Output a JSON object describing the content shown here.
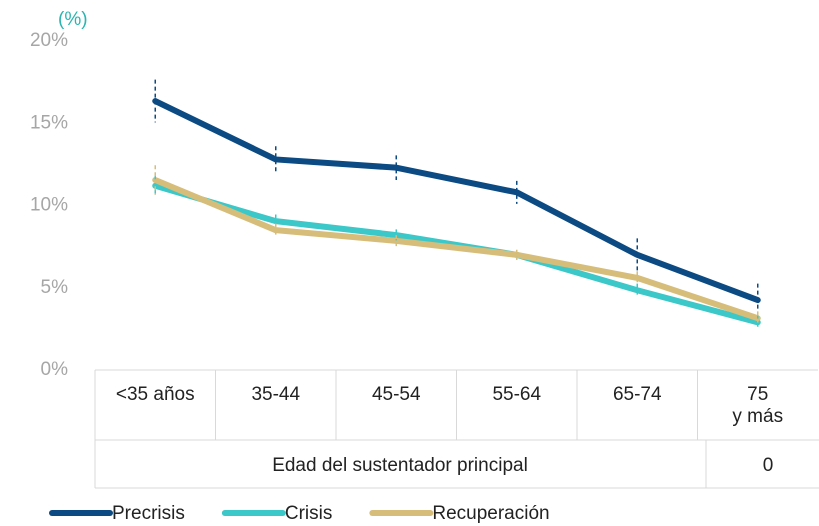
{
  "chart_data": {
    "type": "line",
    "unit_label": "(%)",
    "categories": [
      "<35 años",
      "35-44",
      "45-54",
      "55-64",
      "65-74",
      "75\ny más"
    ],
    "xlabel": "Edad del sustentador principal",
    "xlabel_note": "0",
    "series": [
      {
        "name": "Precrisis",
        "color": "#0b4a82",
        "values": [
          16.35,
          12.8,
          12.3,
          10.8,
          7.0,
          4.25
        ],
        "errors": [
          1.3,
          0.8,
          0.75,
          0.7,
          1.0,
          1.0
        ]
      },
      {
        "name": "Crisis",
        "color": "#3cc8c8",
        "values": [
          11.2,
          9.05,
          8.2,
          7.0,
          4.85,
          2.9
        ],
        "errors": [
          0.6,
          0.4,
          0.35,
          0.3,
          0.4,
          0.4
        ]
      },
      {
        "name": "Recuperación",
        "color": "#d7bd7a",
        "values": [
          11.55,
          8.5,
          7.85,
          7.0,
          5.6,
          3.15
        ],
        "errors": [
          0.9,
          0.4,
          0.35,
          0.3,
          0.4,
          0.4
        ]
      }
    ],
    "ylim": [
      0,
      20
    ],
    "yticks": [
      {
        "value": 0,
        "label": "0%"
      },
      {
        "value": 5,
        "label": "5%"
      },
      {
        "value": 10,
        "label": "10%"
      },
      {
        "value": 15,
        "label": "15%"
      },
      {
        "value": 20,
        "label": "20%"
      }
    ],
    "legend": "bottom"
  }
}
